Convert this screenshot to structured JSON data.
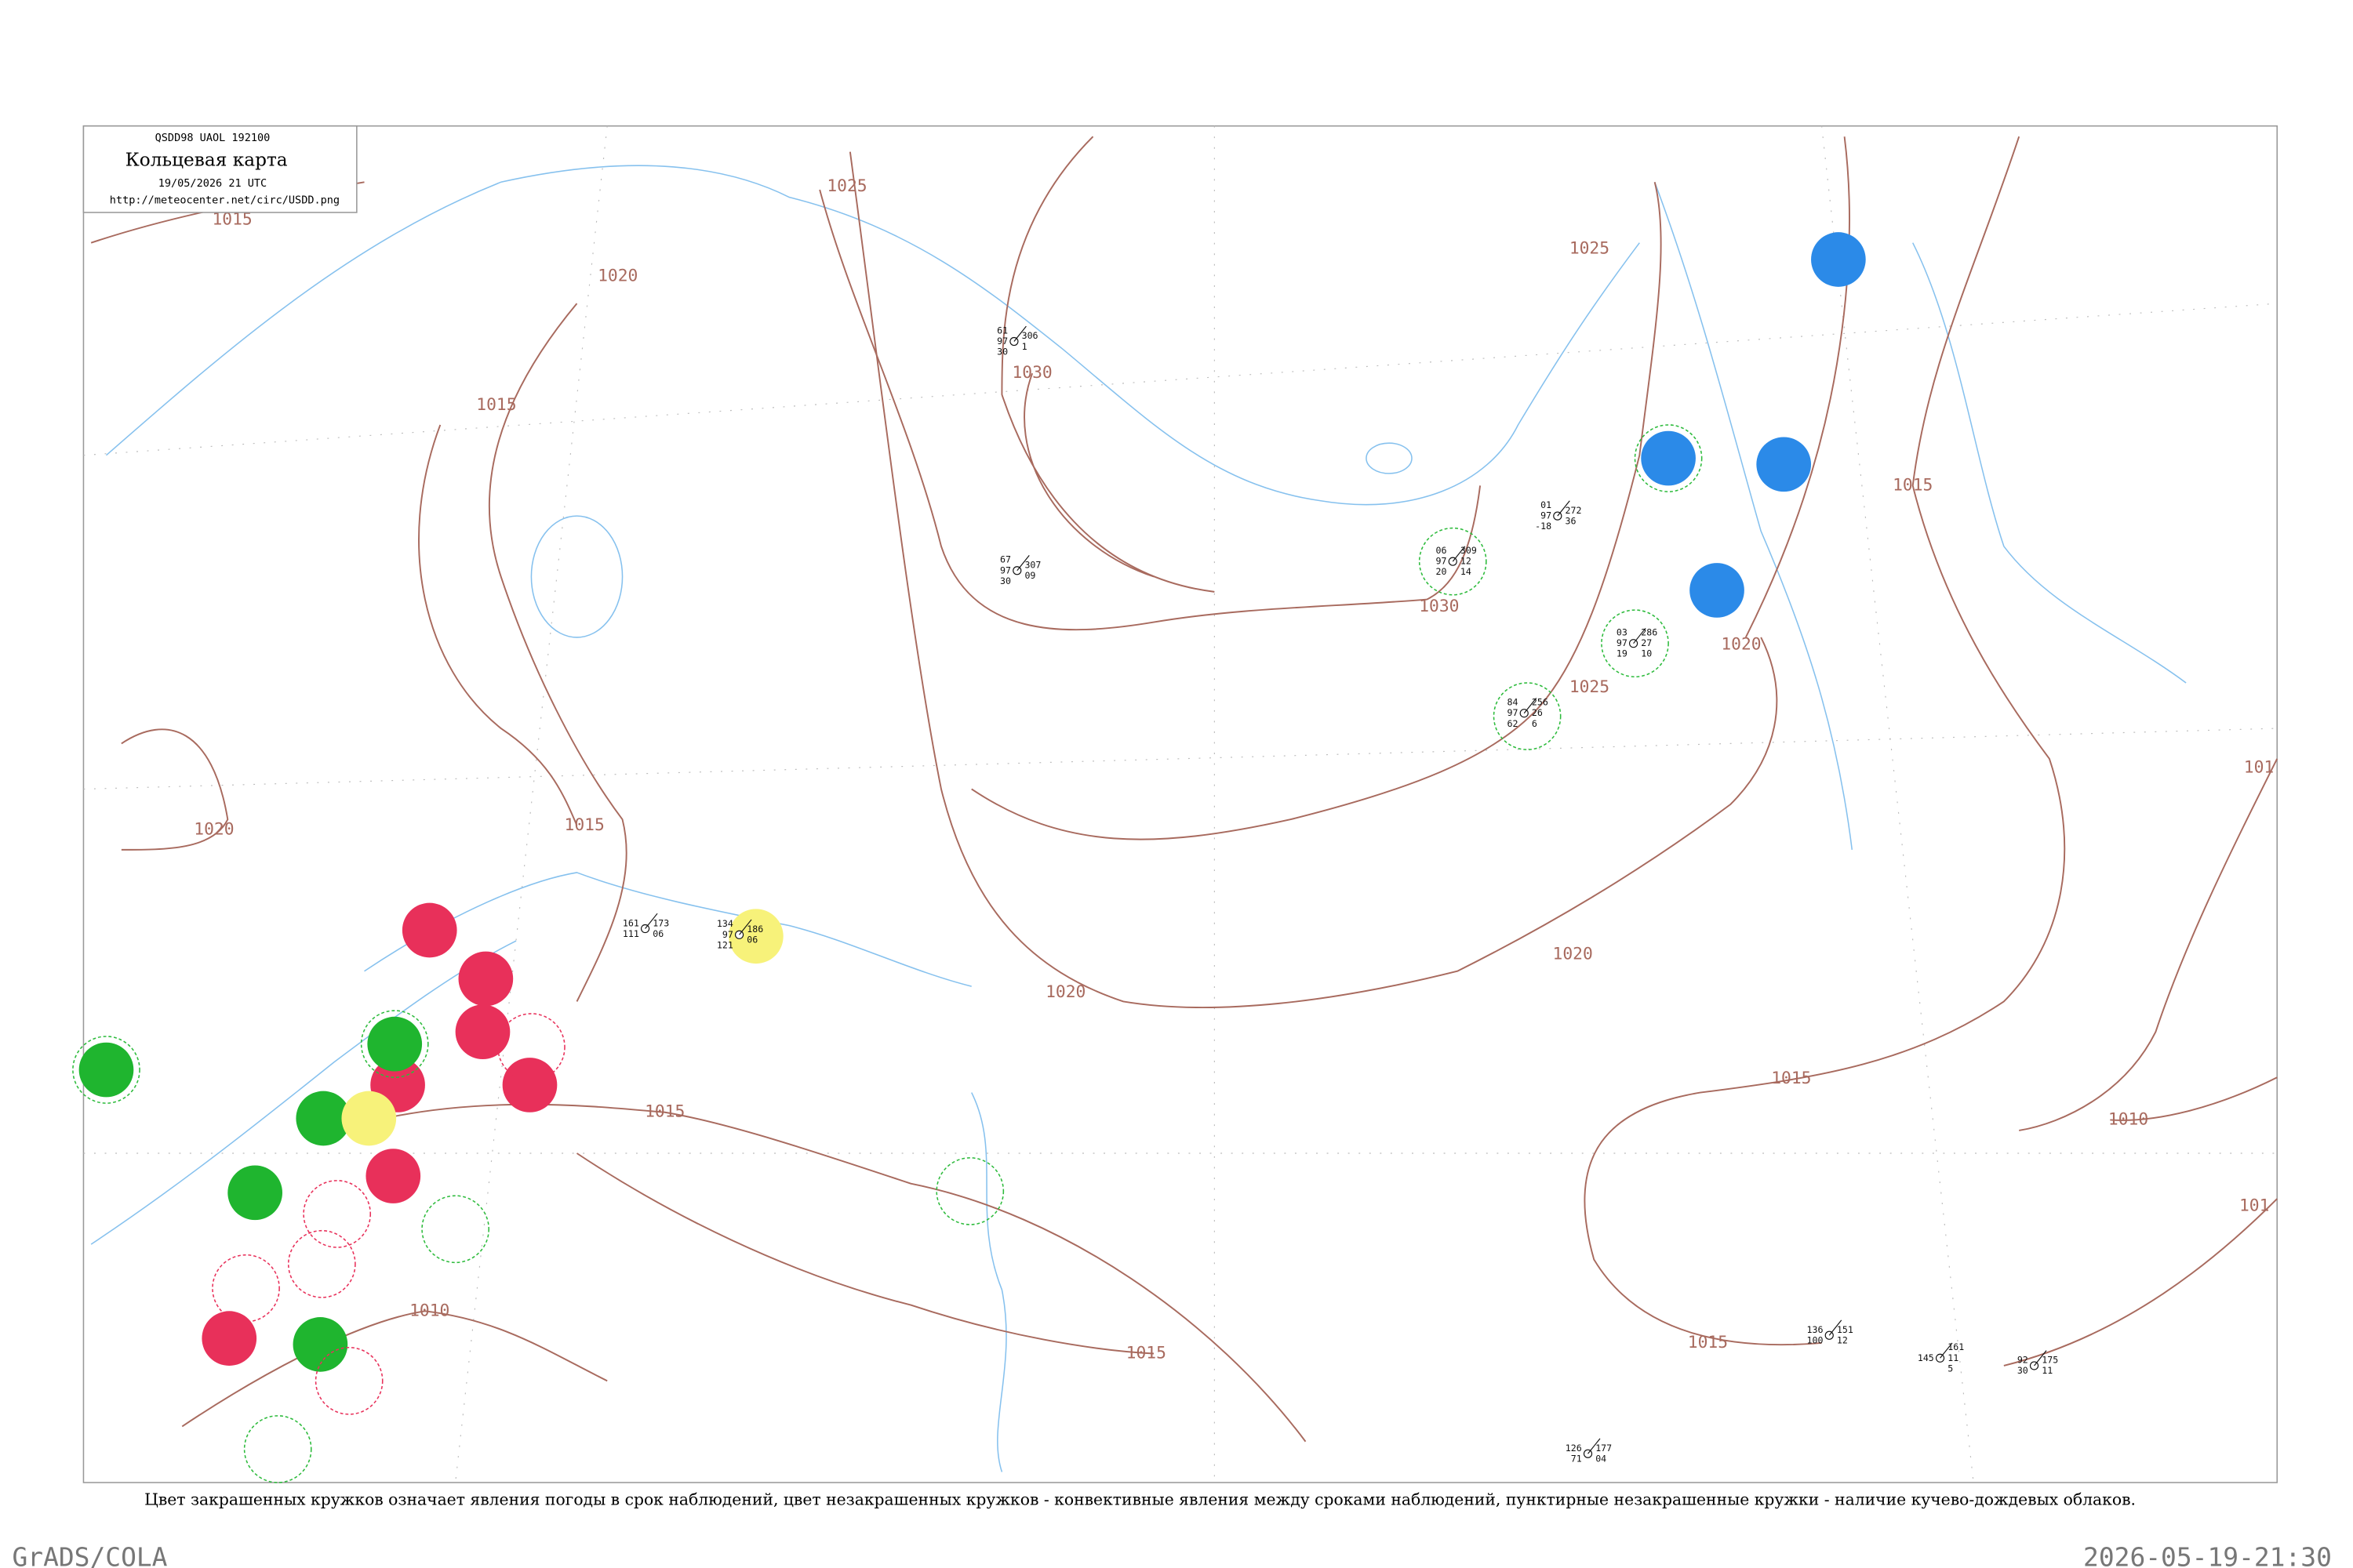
{
  "header": {
    "code": "QSDD98  UAOL  192100",
    "title": "Кольцевая карта",
    "date": "19/05/2026 21 UTC",
    "url": "http://meteocenter.net/circ/USDD.png"
  },
  "isobar_labels": [
    "1015",
    "1020",
    "1025",
    "1015",
    "1030",
    "1025",
    "1030",
    "1025",
    "1020",
    "1015",
    "1015",
    "1020",
    "1020",
    "1020",
    "1015",
    "1015",
    "1010",
    "101",
    "101",
    "1010",
    "1015",
    "1015"
  ],
  "stations": [
    {
      "left": [
        "61",
        "97",
        "30"
      ],
      "right": [
        "306",
        "1"
      ]
    },
    {
      "left": [
        "01",
        "97",
        "-18"
      ],
      "right": [
        "272",
        "36"
      ]
    },
    {
      "left": [
        "06",
        "97",
        "20"
      ],
      "right": [
        "309",
        "12",
        "14"
      ]
    },
    {
      "left": [
        "03",
        "97",
        "19"
      ],
      "right": [
        "286",
        "27",
        "10"
      ]
    },
    {
      "left": [
        "84",
        "97",
        "62"
      ],
      "right": [
        "256",
        "26",
        "6"
      ]
    },
    {
      "left": [
        "67",
        "97",
        "30"
      ],
      "right": [
        "307",
        "09"
      ]
    },
    {
      "left": [
        "145"
      ],
      "right": [
        "161",
        "11",
        "5"
      ]
    },
    {
      "left": [
        "92",
        "30"
      ],
      "right": [
        "175",
        "11"
      ]
    },
    {
      "left": [
        "136",
        "100"
      ],
      "right": [
        "151",
        "12"
      ]
    },
    {
      "left": [
        "126",
        "71"
      ],
      "right": [
        "177",
        "04"
      ]
    },
    {
      "left": [
        "134",
        "97",
        "121"
      ],
      "right": [
        "186",
        "06"
      ]
    },
    {
      "left": [
        "161",
        "111"
      ],
      "right": [
        "173",
        "06"
      ]
    }
  ],
  "caption": "Цвет закрашенных кружков означает явления погоды в срок наблюдений, цвет незакрашенных кружков - конвективные явления между сроками наблюдений, пунктирные незакрашенные кружки - наличие кучево-дождевых облаков.",
  "footer": {
    "left": "GrADS/COLA",
    "right": "2026-05-19-21:30"
  }
}
